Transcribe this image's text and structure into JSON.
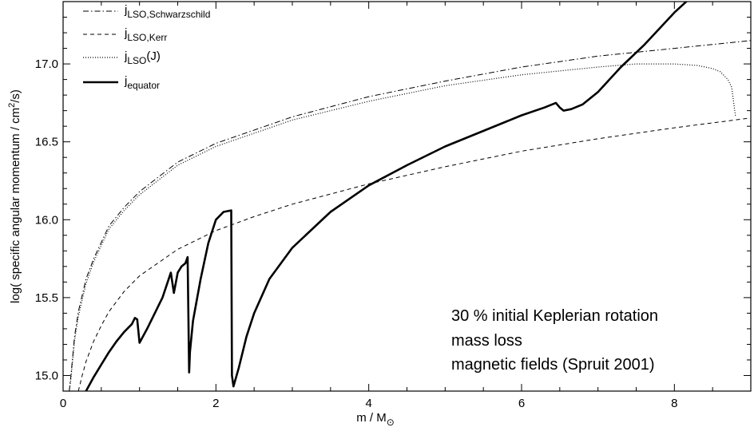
{
  "chart_data": {
    "type": "line",
    "xlabel_main": "m / M",
    "xlabel_sub": "⊙",
    "ylabel_pre": "log( specific angular momentum / cm",
    "ylabel_sup": "2",
    "ylabel_post": "/s)",
    "xlim": [
      0,
      9
    ],
    "ylim": [
      14.9,
      17.4
    ],
    "xticks": [
      0,
      2,
      4,
      6,
      8
    ],
    "yticks": [
      15.0,
      15.5,
      16.0,
      16.5,
      17.0
    ],
    "xtick_labels": [
      "0",
      "2",
      "4",
      "6",
      "8"
    ],
    "ytick_labels": [
      "15.0",
      "15.5",
      "16.0",
      "16.5",
      "17.0"
    ],
    "legend_position": "top-left",
    "legend": [
      {
        "base": "j",
        "sub": "LSO,Schwarzschild",
        "suffix": "",
        "style": "dashdot"
      },
      {
        "base": "j",
        "sub": "LSO,Kerr",
        "suffix": "",
        "style": "dashed"
      },
      {
        "base": "j",
        "sub": "LSO",
        "suffix": "(J)",
        "style": "dotted"
      },
      {
        "base": "j",
        "sub": "equator",
        "suffix": "",
        "style": "solid-thick"
      }
    ],
    "annotations": [
      "30 % initial Keplerian rotation",
      "mass loss",
      "magnetic fields (Spruit 2001)"
    ],
    "series": [
      {
        "style": "dashdot",
        "x": [
          0.08,
          0.1,
          0.15,
          0.2,
          0.3,
          0.4,
          0.6,
          0.8,
          1.0,
          1.5,
          2.0,
          3.0,
          4.0,
          5.0,
          6.0,
          7.0,
          8.0,
          9.0
        ],
        "y": [
          14.9,
          14.99,
          15.25,
          15.41,
          15.62,
          15.75,
          15.96,
          16.08,
          16.18,
          16.37,
          16.49,
          16.66,
          16.79,
          16.89,
          16.98,
          17.05,
          17.1,
          17.15
        ]
      },
      {
        "style": "dashed",
        "x": [
          0.2,
          0.25,
          0.3,
          0.4,
          0.5,
          0.6,
          0.8,
          1.0,
          1.5,
          2.0,
          2.5,
          3.0,
          4.0,
          5.0,
          6.0,
          7.0,
          8.0,
          8.95
        ],
        "y": [
          14.9,
          15.0,
          15.09,
          15.22,
          15.32,
          15.41,
          15.54,
          15.64,
          15.81,
          15.93,
          16.02,
          16.1,
          16.23,
          16.34,
          16.44,
          16.52,
          16.59,
          16.65
        ]
      },
      {
        "style": "dotted",
        "x": [
          0.08,
          0.1,
          0.15,
          0.2,
          0.3,
          0.4,
          0.6,
          0.8,
          1.0,
          1.5,
          2.0,
          3.0,
          4.0,
          5.0,
          6.0,
          7.0,
          7.5,
          8.0,
          8.3,
          8.5,
          8.6,
          8.7,
          8.75,
          8.8
        ],
        "y": [
          14.9,
          14.97,
          15.22,
          15.38,
          15.59,
          15.73,
          15.94,
          16.06,
          16.16,
          16.35,
          16.47,
          16.64,
          16.76,
          16.86,
          16.93,
          16.98,
          17.0,
          17.0,
          16.99,
          16.97,
          16.95,
          16.9,
          16.85,
          16.66
        ]
      },
      {
        "style": "solid-thick",
        "x": [
          0.3,
          0.4,
          0.5,
          0.6,
          0.7,
          0.8,
          0.9,
          0.94,
          0.97,
          1.0,
          1.1,
          1.2,
          1.3,
          1.41,
          1.45,
          1.5,
          1.55,
          1.6,
          1.63,
          1.65,
          1.66,
          1.7,
          1.8,
          1.9,
          2.0,
          2.1,
          2.2,
          2.21,
          2.23,
          2.3,
          2.4,
          2.5,
          2.7,
          3.0,
          3.5,
          4.0,
          4.5,
          5.0,
          5.5,
          6.0,
          6.3,
          6.45,
          6.5,
          6.55,
          6.65,
          6.8,
          7.0,
          7.3,
          7.6,
          8.0,
          8.2
        ],
        "y": [
          14.9,
          14.99,
          15.07,
          15.15,
          15.22,
          15.28,
          15.33,
          15.37,
          15.36,
          15.21,
          15.3,
          15.4,
          15.5,
          15.66,
          15.53,
          15.66,
          15.7,
          15.72,
          15.76,
          15.02,
          15.15,
          15.35,
          15.62,
          15.85,
          16.0,
          16.05,
          16.06,
          15.0,
          14.93,
          15.05,
          15.25,
          15.4,
          15.62,
          15.82,
          16.05,
          16.22,
          16.35,
          16.47,
          16.57,
          16.67,
          16.72,
          16.75,
          16.72,
          16.7,
          16.71,
          16.74,
          16.82,
          16.98,
          17.12,
          17.33,
          17.42
        ]
      }
    ]
  }
}
